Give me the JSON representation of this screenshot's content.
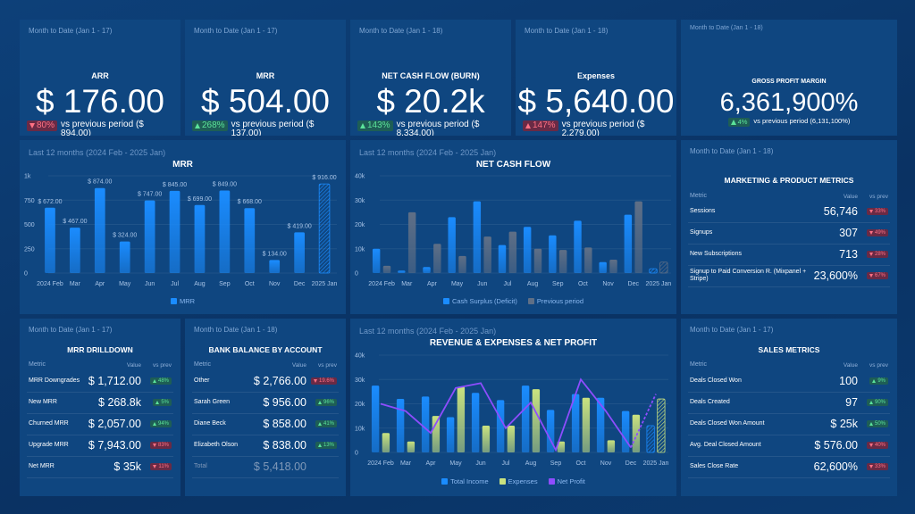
{
  "kpis": [
    {
      "period": "Month to Date (Jan 1 - 17)",
      "title": "ARR",
      "value": "$ 176.00",
      "change": "80%",
      "direction": "down",
      "status": "negative",
      "comparison": "vs previous period ($ 894.00)"
    },
    {
      "period": "Month to Date (Jan 1 - 17)",
      "title": "MRR",
      "value": "$ 504.00",
      "change": "268%",
      "direction": "up",
      "status": "positive",
      "comparison": "vs previous period ($ 137.00)"
    },
    {
      "period": "Month to Date (Jan 1 - 18)",
      "title": "NET CASH FLOW (BURN)",
      "value": "$ 20.2k",
      "change": "143%",
      "direction": "up",
      "status": "positive",
      "comparison": "vs previous period ($ 8,334.00)"
    },
    {
      "period": "Month to Date (Jan 1 - 18)",
      "title": "Expenses",
      "value": "$ 5,640.00",
      "change": "147%",
      "direction": "up",
      "status": "negative",
      "comparison": "vs previous period ($ 2,279.00)"
    },
    {
      "period": "Month to Date (Jan 1 - 18)",
      "title": "GROSS PROFIT MARGIN",
      "value": "6,361,900%",
      "change": "4%",
      "direction": "up",
      "status": "positive",
      "comparison": "vs previous period (6,131,100%)"
    }
  ],
  "chart_data": [
    {
      "type": "bar",
      "period": "Last 12 months (2024 Feb - 2025 Jan)",
      "title": "MRR",
      "categories": [
        "2024 Feb",
        "Mar",
        "Apr",
        "May",
        "Jun",
        "Jul",
        "Aug",
        "Sep",
        "Oct",
        "Nov",
        "Dec",
        "2025 Jan"
      ],
      "series": [
        {
          "name": "MRR",
          "color": "#1a8cff",
          "values": [
            672,
            467,
            874,
            324,
            747,
            845,
            699,
            849,
            668,
            134,
            419,
            916
          ],
          "value_labels": [
            "$ 672.00",
            "$ 467.00",
            "$ 874.00",
            "$ 324.00",
            "$ 747.00",
            "$ 845.00",
            "$ 699.00",
            "$ 849.00",
            "$ 668.00",
            "$ 134.00",
            "$ 419.00",
            "$ 916.00"
          ]
        }
      ],
      "ylim": [
        0,
        1000
      ],
      "yticks": [
        0,
        250,
        500,
        750,
        {
          "value": 1000,
          "label": "1k"
        }
      ],
      "grid": true
    },
    {
      "type": "bar",
      "period": "Last 12 months (2024 Feb - 2025 Jan)",
      "title": "NET CASH FLOW",
      "categories": [
        "2024 Feb",
        "Mar",
        "Apr",
        "May",
        "Jun",
        "Jul",
        "Aug",
        "Sep",
        "Oct",
        "Nov",
        "Dec",
        "2025 Jan"
      ],
      "series": [
        {
          "name": "Cash Surplus (Deficit)",
          "color": "#1a8cff",
          "values": [
            10000,
            1000,
            2500,
            23000,
            29500,
            11500,
            19000,
            15500,
            21500,
            4500,
            24000,
            1800
          ]
        },
        {
          "name": "Previous period",
          "color": "#5f6f86",
          "values": [
            3000,
            25000,
            12000,
            7000,
            15000,
            17000,
            10000,
            9500,
            10500,
            5500,
            29500,
            4500
          ]
        }
      ],
      "ylim": [
        0,
        40000
      ],
      "yticks": [
        0,
        {
          "value": 10000,
          "label": "10k"
        },
        {
          "value": 20000,
          "label": "20k"
        },
        {
          "value": 30000,
          "label": "30k"
        },
        {
          "value": 40000,
          "label": "40k"
        }
      ],
      "grid": true
    },
    {
      "type": "bar",
      "period": "Last 12 months (2024 Feb - 2025 Jan)",
      "title": "REVENUE & EXPENSES & NET PROFIT",
      "categories": [
        "2024 Feb",
        "Mar",
        "Apr",
        "May",
        "Jun",
        "Jul",
        "Aug",
        "Sep",
        "Oct",
        "Nov",
        "Dec",
        "2025 Jan"
      ],
      "series": [
        {
          "name": "Total Income",
          "color": "#1a8cff",
          "values": [
            27500,
            22000,
            23000,
            14500,
            24500,
            21500,
            27500,
            17500,
            24000,
            22500,
            17000,
            11000
          ]
        },
        {
          "name": "Expenses",
          "color": "#c9e27f",
          "values": [
            8000,
            4500,
            15000,
            27000,
            11000,
            11000,
            26000,
            4500,
            22500,
            5000,
            15500,
            22000
          ]
        },
        {
          "name": "Net Profit",
          "type": "line",
          "color": "#8e4dff",
          "values": [
            20000,
            17000,
            8000,
            26500,
            28500,
            10000,
            20500,
            1000,
            30000,
            17000,
            2000,
            24000
          ]
        }
      ],
      "ylim": [
        0,
        40000
      ],
      "yticks": [
        0,
        {
          "value": 10000,
          "label": "10k"
        },
        {
          "value": 20000,
          "label": "20k"
        },
        {
          "value": 30000,
          "label": "30k"
        },
        {
          "value": 40000,
          "label": "40k"
        }
      ],
      "grid": true
    }
  ],
  "tables": [
    {
      "period": "Month to Date (Jan 1 - 18)",
      "title": "MARKETING & PRODUCT METRICS",
      "columns": [
        "Metric",
        "Value",
        "vs prev"
      ],
      "rows": [
        {
          "metric": "Sessions",
          "value": "56,746",
          "change": "33%",
          "direction": "down",
          "status": "negative"
        },
        {
          "metric": "Signups",
          "value": "307",
          "change": "49%",
          "direction": "down",
          "status": "negative"
        },
        {
          "metric": "New Subscriptions",
          "value": "713",
          "change": "28%",
          "direction": "down",
          "status": "negative"
        },
        {
          "metric": "Signup to Paid Conversion R. (Mixpanel + Stripe)",
          "value": "23,600%",
          "change": "67%",
          "direction": "down",
          "status": "negative"
        }
      ]
    },
    {
      "period": "Month to Date (Jan 1 - 17)",
      "title": "MRR DRILLDOWN",
      "columns": [
        "Metric",
        "Value",
        "vs prev"
      ],
      "rows": [
        {
          "metric": "MRR Downgrades",
          "value": "$ 1,712.00",
          "change": "48%",
          "direction": "up",
          "status": "positive"
        },
        {
          "metric": "New MRR",
          "value": "$ 268.8k",
          "change": "5%",
          "direction": "up",
          "status": "positive"
        },
        {
          "metric": "Churned MRR",
          "value": "$ 2,057.00",
          "change": "94%",
          "direction": "up",
          "status": "positive"
        },
        {
          "metric": "Upgrade MRR",
          "value": "$ 7,943.00",
          "change": "83%",
          "direction": "down",
          "status": "negative"
        },
        {
          "metric": "Net MRR",
          "value": "$ 35k",
          "change": "11%",
          "direction": "down",
          "status": "negative"
        }
      ]
    },
    {
      "period": "Month to Date (Jan 1 - 18)",
      "title": "BANK BALANCE BY ACCOUNT",
      "columns": [
        "Metric",
        "Value",
        "vs prev"
      ],
      "rows": [
        {
          "metric": "Other",
          "value": "$ 2,766.00",
          "change": "19.6%",
          "direction": "down",
          "status": "negative"
        },
        {
          "metric": "Sarah Green",
          "value": "$ 956.00",
          "change": "96%",
          "direction": "up",
          "status": "positive"
        },
        {
          "metric": "Diane Beck",
          "value": "$ 858.00",
          "change": "41%",
          "direction": "up",
          "status": "positive"
        },
        {
          "metric": "Elizabeth Olson",
          "value": "$ 838.00",
          "change": "13%",
          "direction": "up",
          "status": "positive"
        }
      ],
      "total": {
        "metric": "Total",
        "value": "$ 5,418.00"
      }
    },
    {
      "period": "Month to Date (Jan 1 - 17)",
      "title": "SALES METRICS",
      "columns": [
        "Metric",
        "Value",
        "vs prev"
      ],
      "rows": [
        {
          "metric": "Deals Closed Won",
          "value": "100",
          "change": "9%",
          "direction": "up",
          "status": "positive"
        },
        {
          "metric": "Deals Created",
          "value": "97",
          "change": "90%",
          "direction": "up",
          "status": "positive"
        },
        {
          "metric": "Deals Closed Won Amount",
          "value": "$ 25k",
          "change": "50%",
          "direction": "up",
          "status": "positive"
        },
        {
          "metric": "Avg. Deal Closed Amount",
          "value": "$ 576.00",
          "change": "40%",
          "direction": "down",
          "status": "negative"
        },
        {
          "metric": "Sales Close Rate",
          "value": "62,600%",
          "change": "33%",
          "direction": "down",
          "status": "negative"
        }
      ]
    }
  ]
}
